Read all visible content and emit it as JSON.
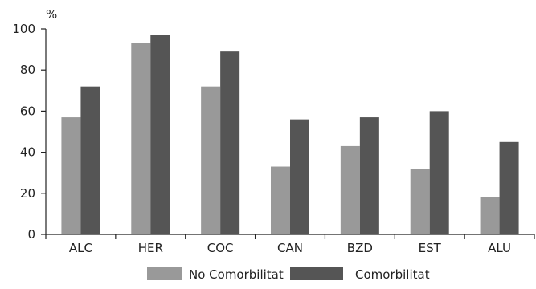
{
  "chart_data": {
    "type": "bar",
    "title": "",
    "xlabel": "",
    "ylabel": "%",
    "ylim": [
      0,
      100
    ],
    "yticks": [
      0,
      20,
      40,
      60,
      80,
      100
    ],
    "grid": false,
    "legend_position": "bottom",
    "categories": [
      "ALC",
      "HER",
      "COC",
      "CAN",
      "BZD",
      "EST",
      "ALU"
    ],
    "series": [
      {
        "name": "No Comorbilitat",
        "color": "#999999",
        "values": [
          57,
          93,
          72,
          33,
          43,
          32,
          18
        ]
      },
      {
        "name": "Comorbilitat",
        "color": "#555555",
        "values": [
          72,
          97,
          89,
          56,
          57,
          60,
          45
        ]
      }
    ]
  }
}
